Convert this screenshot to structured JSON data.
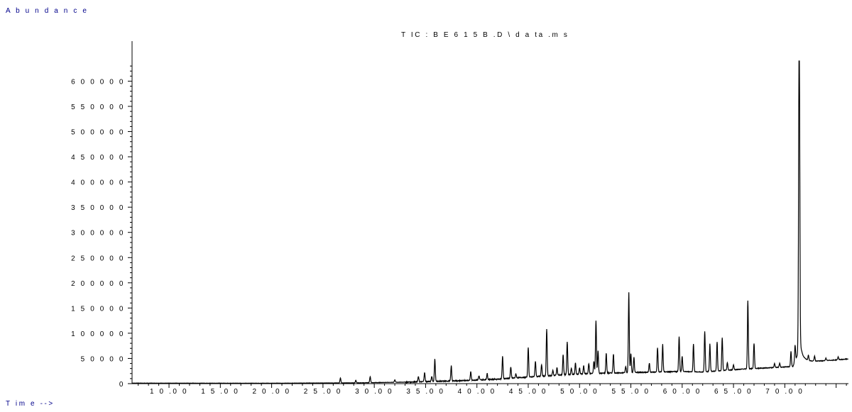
{
  "chart_data": {
    "type": "line",
    "title": "T IC : B E 6 1 5 B .D \\ d a ta .m s",
    "ylabel": "A b u n d a n c e",
    "xlabel": "T im e -->",
    "xlim": [
      6.4,
      76.2
    ],
    "ylim": [
      0,
      640000
    ],
    "x_ticks": [
      10,
      15,
      20,
      25,
      30,
      35,
      40,
      45,
      50,
      55,
      60,
      65,
      70
    ],
    "x_tick_labels": [
      "1 0 .0 0",
      "1 5 .0 0",
      "2 0 .0 0",
      "2 5 .0 0",
      "3 0 .0 0",
      "3 5 .0 0",
      "4 0 .0 0",
      "4 5 .0 0",
      "5 0 .0 0",
      "5 5 .0 0",
      "6 0 .0 0",
      "6 5 .0 0",
      "7 0 .0 0"
    ],
    "y_ticks": [
      0,
      50000,
      100000,
      150000,
      200000,
      250000,
      300000,
      350000,
      400000,
      450000,
      500000,
      550000,
      600000
    ],
    "y_tick_labels": [
      "0",
      "5 0 0 0 0",
      "1 0 0 0 0 0",
      "1 5 0 0 0 0",
      "2 0 0 0 0 0",
      "2 5 0 0 0 0",
      "3 0 0 0 0 0",
      "3 5 0 0 0 0",
      "4 0 0 0 0 0",
      "4 5 0 0 0 0",
      "5 0 0 0 0 0",
      "5 5 0 0 0 0",
      "6 0 0 0 0 0"
    ],
    "grid": false,
    "line_color": "#000000",
    "baseline": [
      [
        6.4,
        1000
      ],
      [
        20,
        800
      ],
      [
        28,
        1500
      ],
      [
        33,
        3000
      ],
      [
        38,
        5500
      ],
      [
        42,
        9000
      ],
      [
        45,
        13000
      ],
      [
        48,
        17000
      ],
      [
        51,
        20000
      ],
      [
        55,
        22000
      ],
      [
        60,
        24000
      ],
      [
        62,
        23000
      ],
      [
        66,
        29000
      ],
      [
        68,
        31000
      ],
      [
        70,
        33000
      ],
      [
        70.8,
        34000
      ],
      [
        71.3,
        60000
      ],
      [
        71.8,
        45000
      ],
      [
        72.5,
        44000
      ],
      [
        73.5,
        45000
      ],
      [
        75,
        47000
      ],
      [
        76.2,
        49000
      ]
    ],
    "peaks": [
      [
        26.7,
        10000
      ],
      [
        28.2,
        5000
      ],
      [
        29.6,
        12000
      ],
      [
        32.0,
        5000
      ],
      [
        34.3,
        10000
      ],
      [
        34.9,
        18000
      ],
      [
        35.6,
        10000
      ],
      [
        35.9,
        45000
      ],
      [
        37.5,
        30000
      ],
      [
        39.4,
        17000
      ],
      [
        40.2,
        8000
      ],
      [
        41.0,
        12000
      ],
      [
        42.5,
        45000
      ],
      [
        43.3,
        22000
      ],
      [
        43.8,
        8000
      ],
      [
        45.0,
        58000
      ],
      [
        45.7,
        30000
      ],
      [
        46.3,
        23000
      ],
      [
        46.8,
        92000
      ],
      [
        47.4,
        10000
      ],
      [
        47.8,
        15000
      ],
      [
        48.4,
        40000
      ],
      [
        48.8,
        65000
      ],
      [
        49.2,
        12000
      ],
      [
        49.6,
        22000
      ],
      [
        50.0,
        12000
      ],
      [
        50.4,
        16000
      ],
      [
        50.9,
        20000
      ],
      [
        51.4,
        24000
      ],
      [
        51.6,
        105000
      ],
      [
        51.8,
        45000
      ],
      [
        52.6,
        40000
      ],
      [
        53.3,
        38000
      ],
      [
        54.5,
        12000
      ],
      [
        54.8,
        160000
      ],
      [
        55.0,
        38000
      ],
      [
        55.3,
        30000
      ],
      [
        56.8,
        18000
      ],
      [
        57.6,
        48000
      ],
      [
        58.1,
        55000
      ],
      [
        59.7,
        70000
      ],
      [
        60.0,
        30000
      ],
      [
        61.1,
        55000
      ],
      [
        62.2,
        80000
      ],
      [
        62.7,
        55000
      ],
      [
        63.4,
        58000
      ],
      [
        63.9,
        65000
      ],
      [
        64.4,
        15000
      ],
      [
        65.0,
        10000
      ],
      [
        66.4,
        135000
      ],
      [
        67.0,
        50000
      ],
      [
        69.0,
        8000
      ],
      [
        69.5,
        8000
      ],
      [
        70.6,
        30000
      ],
      [
        71.0,
        32000
      ],
      [
        72.3,
        10000
      ],
      [
        74.0,
        5000
      ],
      [
        75.2,
        6000
      ],
      [
        71.4,
        640000
      ],
      [
        72.9,
        10000
      ]
    ]
  }
}
